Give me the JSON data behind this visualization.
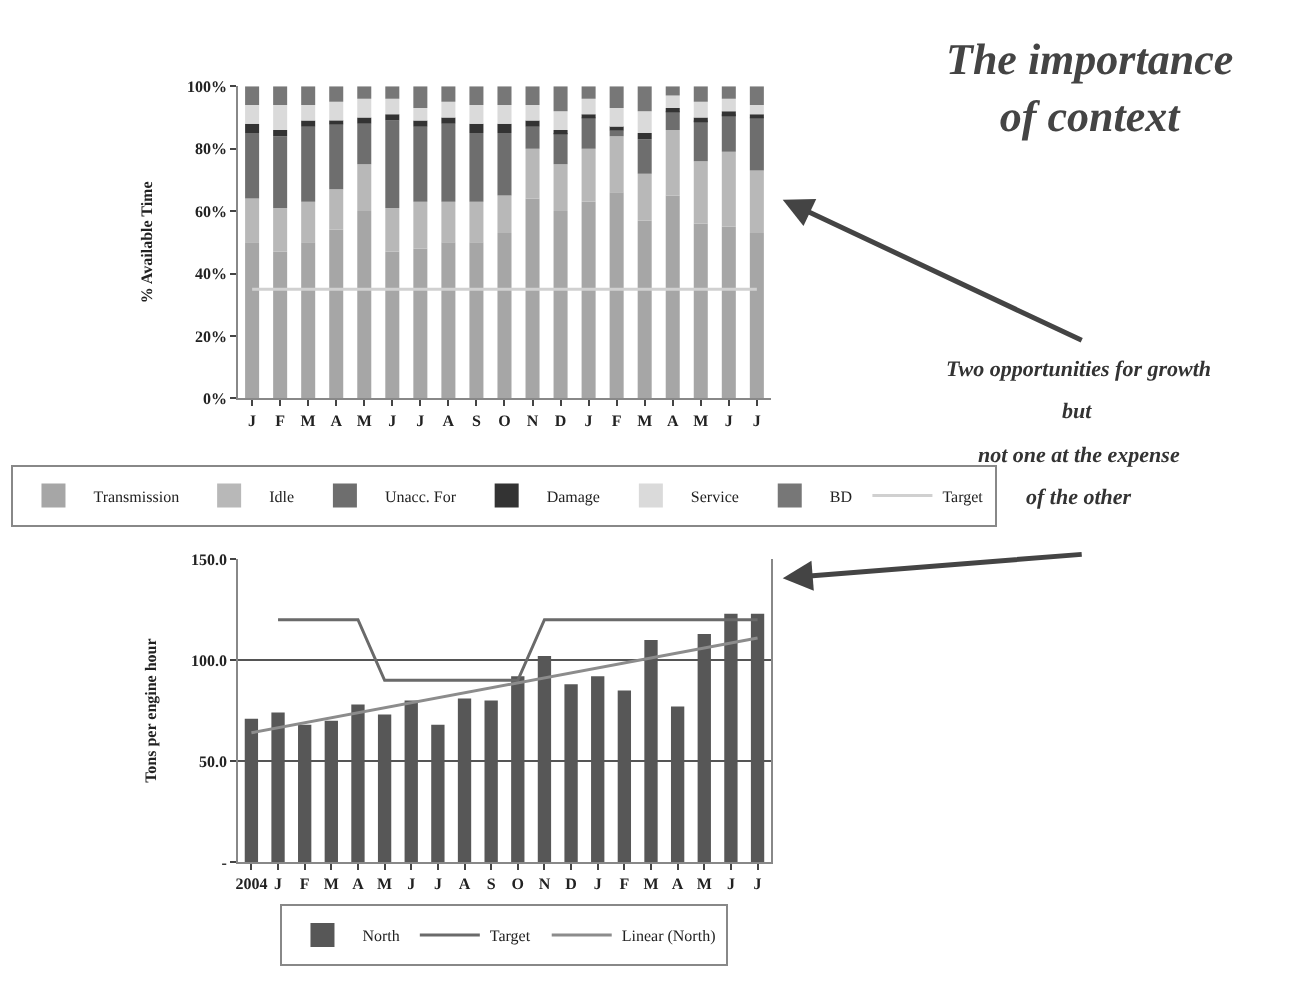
{
  "chart_data": [
    {
      "type": "bar",
      "stacked": true,
      "ylabel": "% Available Time",
      "categories": [
        "J",
        "F",
        "M",
        "A",
        "M",
        "J",
        "J",
        "A",
        "S",
        "O",
        "N",
        "D",
        "J",
        "F",
        "M",
        "A",
        "M",
        "J",
        "J"
      ],
      "series": [
        {
          "name": "Transmission",
          "color": "#a6a6a6",
          "values": [
            50,
            47,
            50,
            54,
            60,
            47,
            48,
            50,
            50,
            53,
            64,
            60,
            63,
            66,
            57,
            65,
            56,
            55,
            53
          ]
        },
        {
          "name": "Idle",
          "color": "#b8b8b8",
          "values": [
            14,
            14,
            13,
            13,
            15,
            14,
            15,
            13,
            13,
            12,
            16,
            15,
            17,
            18,
            15,
            21,
            20,
            24,
            20
          ]
        },
        {
          "name": "Unacc. For",
          "color": "#6e6e6e",
          "values": [
            21,
            23,
            24,
            21,
            13,
            28,
            24,
            25,
            22,
            20,
            7,
            10,
            10,
            2,
            11,
            6,
            13,
            12,
            17
          ]
        },
        {
          "name": "Damage",
          "color": "#333333",
          "values": [
            3,
            2,
            2,
            1,
            2,
            2,
            2,
            2,
            3,
            3,
            2,
            1,
            1,
            1,
            2,
            1,
            1,
            1,
            1
          ]
        },
        {
          "name": "Service",
          "color": "#dadada",
          "values": [
            6,
            8,
            5,
            6,
            6,
            5,
            4,
            5,
            6,
            6,
            5,
            6,
            5,
            6,
            7,
            4,
            5,
            4,
            3
          ]
        },
        {
          "name": "BD",
          "color": "#777777",
          "values": [
            6,
            6,
            6,
            5,
            4,
            4,
            7,
            5,
            6,
            6,
            6,
            8,
            4,
            7,
            8,
            3,
            5,
            4,
            6
          ]
        },
        {
          "name": "Target",
          "type": "line",
          "color": "#d0d0d0",
          "values": [
            35,
            35,
            35,
            35,
            35,
            35,
            35,
            35,
            35,
            35,
            35,
            35,
            35,
            35,
            35,
            35,
            35,
            35,
            35
          ]
        }
      ],
      "ylim": [
        0,
        100
      ],
      "yticks": [
        {
          "value": 0,
          "label": "0%"
        },
        {
          "value": 20,
          "label": "20%"
        },
        {
          "value": 40,
          "label": "40%"
        },
        {
          "value": 60,
          "label": "60%"
        },
        {
          "value": 80,
          "label": "80%"
        },
        {
          "value": 100,
          "label": "100%"
        }
      ],
      "grid": false,
      "legend": "bottom",
      "marker": "none"
    },
    {
      "type": "bar",
      "ylabel": "Tons per engine hour",
      "categories": [
        "2004",
        "J",
        "F",
        "M",
        "A",
        "M",
        "J",
        "J",
        "A",
        "S",
        "O",
        "N",
        "D",
        "J",
        "F",
        "M",
        "A",
        "M",
        "J",
        "J"
      ],
      "series": [
        {
          "name": "North",
          "color": "#575757",
          "values": [
            71,
            74,
            68,
            70,
            78,
            73,
            80,
            68,
            81,
            80,
            92,
            102,
            88,
            92,
            85,
            110,
            77,
            113,
            123,
            123
          ]
        },
        {
          "name": "Target",
          "type": "line",
          "color": "#6a6a6a",
          "values": [
            null,
            120,
            120,
            120,
            120,
            90,
            90,
            90,
            90,
            90,
            90,
            120,
            120,
            120,
            120,
            120,
            120,
            120,
            120,
            120
          ]
        },
        {
          "name": "Linear (North)",
          "type": "line",
          "color": "#8c8c8c",
          "values": [
            64,
            null,
            null,
            null,
            null,
            null,
            null,
            null,
            null,
            null,
            null,
            null,
            null,
            null,
            null,
            null,
            null,
            null,
            null,
            111
          ]
        }
      ],
      "ylim": [
        0,
        150
      ],
      "yticks": [
        {
          "value": 0,
          "label": "-"
        },
        {
          "value": 50,
          "label": "50.0"
        },
        {
          "value": 100,
          "label": "100.0"
        },
        {
          "value": 150,
          "label": "150.0"
        }
      ],
      "grid": "y",
      "legend": "bottom",
      "marker": "none"
    },
    {
      "type": "other",
      "title": "The importance of context",
      "annotations": [
        "Two opportunities for growth",
        "but",
        "not one at the expense",
        "of the other"
      ]
    }
  ]
}
